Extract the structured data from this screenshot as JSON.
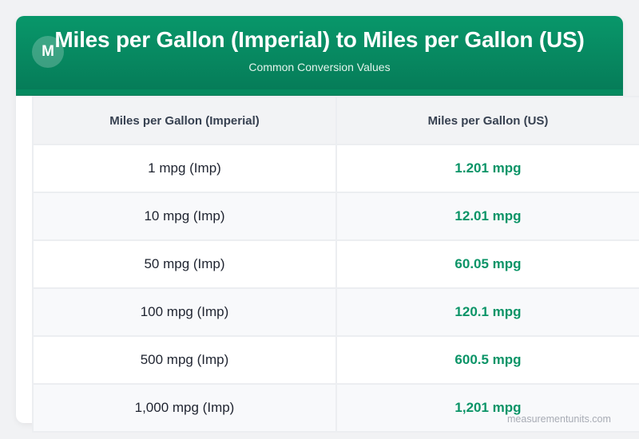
{
  "header": {
    "logo_letter": "M",
    "title": "Miles per Gallon (Imperial) to Miles per Gallon (US)",
    "subtitle": "Common Conversion Values"
  },
  "table": {
    "columns": [
      "Miles per Gallon (Imperial)",
      "Miles per Gallon (US)"
    ],
    "rows": [
      {
        "imperial": "1 mpg (Imp)",
        "us": "1.201 mpg"
      },
      {
        "imperial": "10 mpg (Imp)",
        "us": "12.01 mpg"
      },
      {
        "imperial": "50 mpg (Imp)",
        "us": "60.05 mpg"
      },
      {
        "imperial": "100 mpg (Imp)",
        "us": "120.1 mpg"
      },
      {
        "imperial": "500 mpg (Imp)",
        "us": "600.5 mpg"
      },
      {
        "imperial": "1,000 mpg (Imp)",
        "us": "1,201 mpg"
      }
    ]
  },
  "footer": {
    "watermark": "measurementunits.com"
  },
  "colors": {
    "brand_green": "#08976a",
    "value_green": "#0b9467",
    "header_text": "#374151"
  }
}
